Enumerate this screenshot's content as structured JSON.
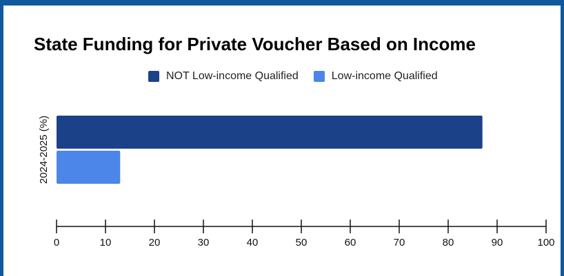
{
  "chart_data": {
    "type": "bar",
    "orientation": "horizontal",
    "title": "State Funding for Private Voucher Based on Income",
    "categories": [
      "2024-2025 (%)"
    ],
    "ylabel": "2024-2025 (%)",
    "xlabel": "",
    "xlim": [
      0,
      100
    ],
    "xticks": [
      0,
      10,
      20,
      30,
      40,
      50,
      60,
      70,
      80,
      90,
      100
    ],
    "grid": false,
    "legend_position": "top-center",
    "series": [
      {
        "name": "NOT Low-income Qualified",
        "values": [
          87
        ],
        "color": "#1b4189"
      },
      {
        "name": "Low-income Qualified",
        "values": [
          13
        ],
        "color": "#4b86e8"
      }
    ]
  },
  "frame_color": "#0f5a9c"
}
